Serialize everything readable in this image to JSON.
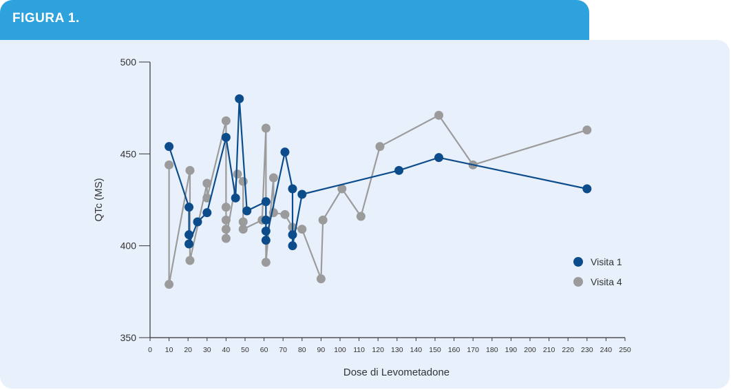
{
  "figure": {
    "title": "FIGURA 1."
  },
  "colors": {
    "tab": "#2ea2dc",
    "panel": "#e8f0fb",
    "visita1": "#0d4c8b",
    "visita4": "#9b9b9b",
    "axis": "#333333"
  },
  "chart_data": {
    "type": "line",
    "title": "",
    "xlabel": "Dose di Levometadone",
    "ylabel": "QTc (MS)",
    "xlim": [
      0,
      250
    ],
    "ylim": [
      350,
      500
    ],
    "xticks": [
      0,
      10,
      20,
      30,
      40,
      50,
      60,
      70,
      80,
      90,
      100,
      110,
      120,
      130,
      140,
      150,
      160,
      170,
      180,
      190,
      200,
      210,
      220,
      230,
      240,
      250
    ],
    "yticks": [
      350,
      400,
      450,
      500
    ],
    "grid": false,
    "legend_position": "right",
    "series": [
      {
        "name": "Visita 1",
        "points": [
          [
            10,
            454
          ],
          [
            20.5,
            421
          ],
          [
            20.5,
            406
          ],
          [
            20.5,
            401
          ],
          [
            25,
            413
          ],
          [
            30,
            418
          ],
          [
            40,
            459
          ],
          [
            45,
            426
          ],
          [
            47,
            480
          ],
          [
            51,
            419
          ],
          [
            61,
            424
          ],
          [
            61,
            414
          ],
          [
            61,
            408
          ],
          [
            61,
            403
          ],
          [
            71,
            451
          ],
          [
            75,
            431
          ],
          [
            75,
            406
          ],
          [
            75,
            400
          ],
          [
            80,
            428
          ],
          [
            131,
            441
          ],
          [
            152,
            448
          ],
          [
            230,
            431
          ]
        ]
      },
      {
        "name": "Visita 4",
        "points": [
          [
            10,
            444
          ],
          [
            10,
            379
          ],
          [
            21,
            441
          ],
          [
            21,
            392
          ],
          [
            30,
            434
          ],
          [
            30,
            426
          ],
          [
            40,
            468
          ],
          [
            40,
            421
          ],
          [
            40,
            414
          ],
          [
            40,
            409
          ],
          [
            40,
            404
          ],
          [
            46,
            439
          ],
          [
            49,
            435
          ],
          [
            49,
            413
          ],
          [
            49,
            409
          ],
          [
            59,
            414
          ],
          [
            61,
            464
          ],
          [
            61,
            391
          ],
          [
            65,
            437
          ],
          [
            65,
            418
          ],
          [
            71,
            417
          ],
          [
            75,
            410
          ],
          [
            80,
            409
          ],
          [
            90,
            382
          ],
          [
            91,
            414
          ],
          [
            101,
            431
          ],
          [
            111,
            416
          ],
          [
            121,
            454
          ],
          [
            152,
            471
          ],
          [
            170,
            444
          ],
          [
            230,
            463
          ]
        ]
      }
    ]
  }
}
